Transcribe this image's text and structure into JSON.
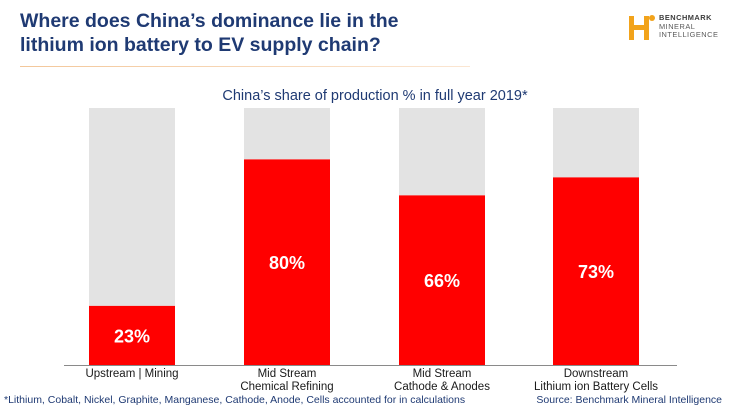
{
  "header": {
    "title_line1": "Where does China’s dominance lie in the",
    "title_line2": "lithium ion battery to EV supply chain?"
  },
  "logo": {
    "icon": "benchmark-logo-icon",
    "line1": "BENCHMARK",
    "line2": "MINERAL",
    "line3": "INTELLIGENCE",
    "color": "#f2a31b"
  },
  "chart_data": {
    "type": "bar",
    "stacked": true,
    "title": "China’s share of production % in full year 2019*",
    "categories": [
      [
        "Upstream | Mining"
      ],
      [
        "Mid Stream",
        "Chemical Refining"
      ],
      [
        "Mid Stream",
        "Cathode & Anodes"
      ],
      [
        "Downstream",
        "Lithium ion Battery Cells"
      ]
    ],
    "values": [
      23,
      80,
      66,
      73
    ],
    "value_labels": [
      "23%",
      "80%",
      "66%",
      "73%"
    ],
    "ylim": [
      0,
      100
    ],
    "colors": {
      "china": "#ff0000",
      "rest": "#e3e3e3",
      "axis": "#8a8a8a"
    },
    "grid": false,
    "legend": "none"
  },
  "footer": {
    "footnote": "*Lithium, Cobalt, Nickel, Graphite, Manganese, Cathode, Anode, Cells accounted for in calculations",
    "source": "Source: Benchmark Mineral Intelligence"
  }
}
